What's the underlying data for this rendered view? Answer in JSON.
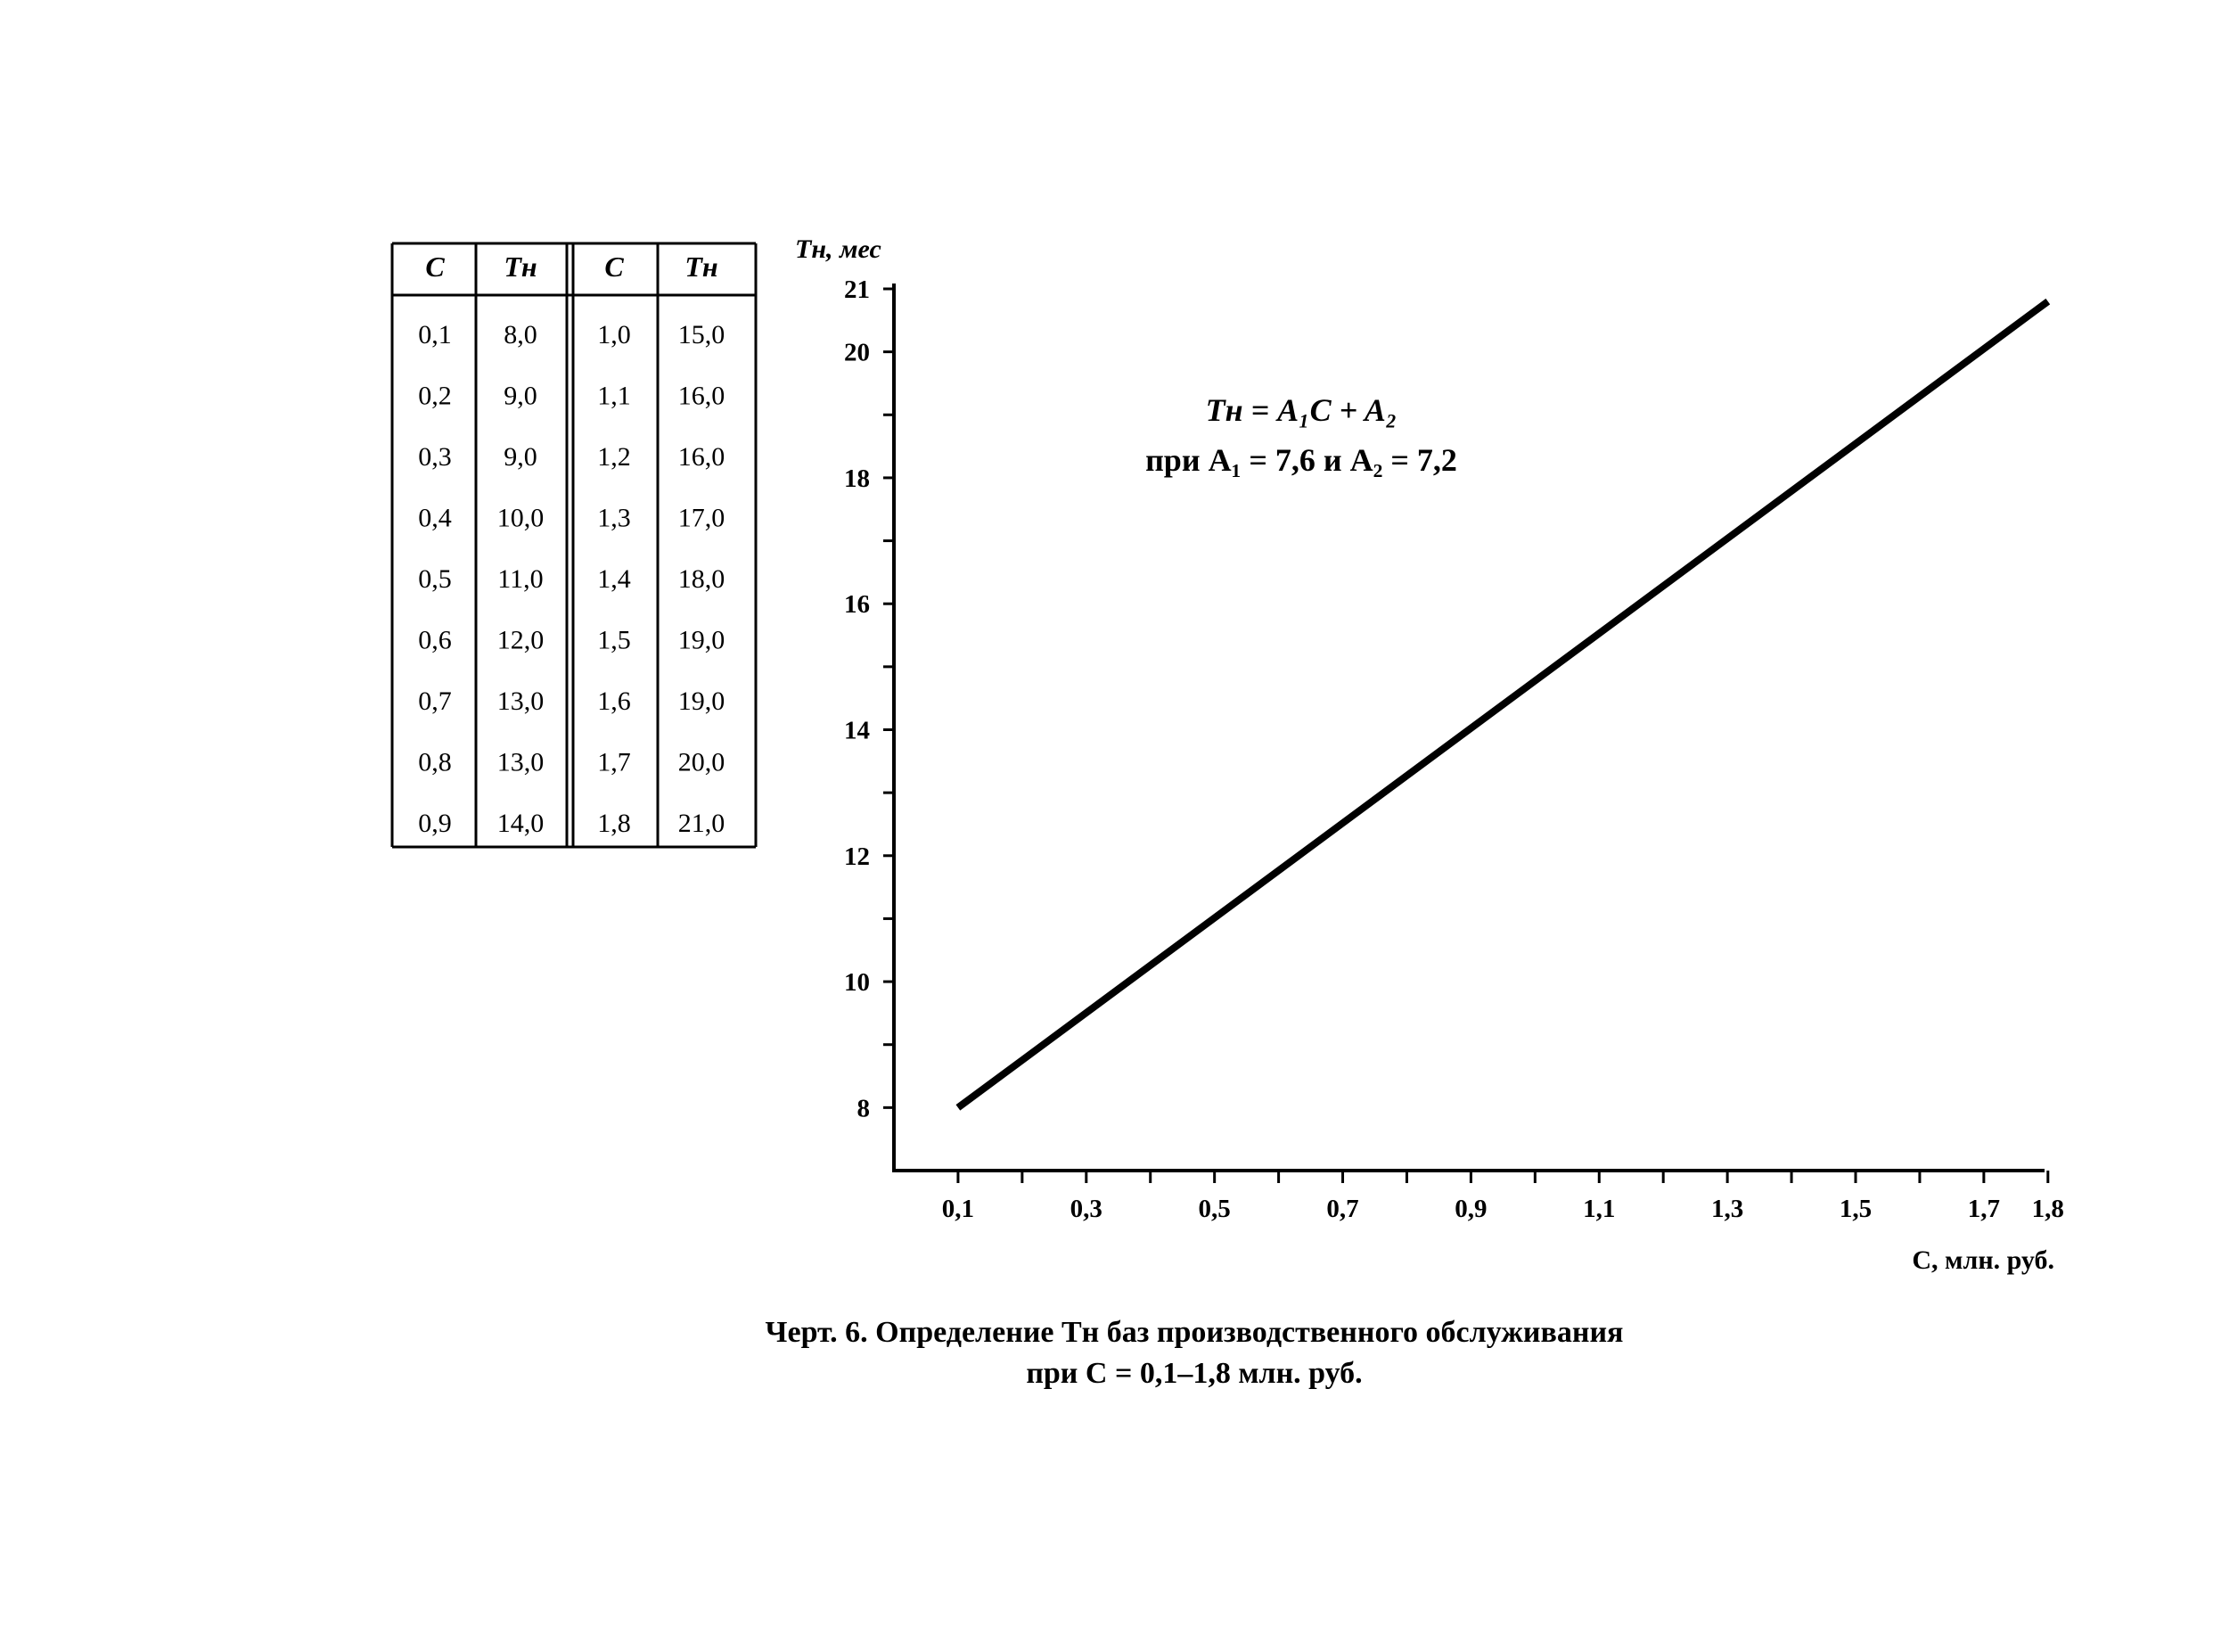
{
  "table": {
    "headers": [
      "C",
      "Тн",
      "C",
      "Тн"
    ],
    "rows": [
      [
        "0,1",
        "8,0",
        "1,0",
        "15,0"
      ],
      [
        "0,2",
        "9,0",
        "1,1",
        "16,0"
      ],
      [
        "0,3",
        "9,0",
        "1,2",
        "16,0"
      ],
      [
        "0,4",
        "10,0",
        "1,3",
        "17,0"
      ],
      [
        "0,5",
        "11,0",
        "1,4",
        "18,0"
      ],
      [
        "0,6",
        "12,0",
        "1,5",
        "19,0"
      ],
      [
        "0,7",
        "13,0",
        "1,6",
        "19,0"
      ],
      [
        "0,8",
        "13,0",
        "1,7",
        "20,0"
      ],
      [
        "0,9",
        "14,0",
        "1,8",
        "21,0"
      ]
    ]
  },
  "chart_data": {
    "type": "line",
    "title": "",
    "xlabel": "C, млн. руб.",
    "ylabel": "Тн, мес",
    "xlim": [
      0,
      1.8
    ],
    "ylim": [
      7,
      21
    ],
    "x_tick_labels": [
      {
        "value": 0.1,
        "label": "0,1"
      },
      {
        "value": 0.3,
        "label": "0,3"
      },
      {
        "value": 0.5,
        "label": "0,5"
      },
      {
        "value": 0.7,
        "label": "0,7"
      },
      {
        "value": 0.9,
        "label": "0,9"
      },
      {
        "value": 1.1,
        "label": "1,1"
      },
      {
        "value": 1.3,
        "label": "1,3"
      },
      {
        "value": 1.5,
        "label": "1,5"
      },
      {
        "value": 1.7,
        "label": "1,7"
      },
      {
        "value": 1.8,
        "label": "1,8"
      }
    ],
    "x_minor_ticks": [
      0.2,
      0.4,
      0.6,
      0.8,
      1.0,
      1.2,
      1.4,
      1.6
    ],
    "y_tick_labels": [
      {
        "value": 8,
        "label": "8"
      },
      {
        "value": 10,
        "label": "10"
      },
      {
        "value": 12,
        "label": "12"
      },
      {
        "value": 14,
        "label": "14"
      },
      {
        "value": 16,
        "label": "16"
      },
      {
        "value": 18,
        "label": "18"
      },
      {
        "value": 20,
        "label": "20"
      },
      {
        "value": 21,
        "label": "21"
      }
    ],
    "y_minor_ticks": [
      9,
      11,
      13,
      15,
      17,
      19
    ],
    "grid": false,
    "series": [
      {
        "x": [
          0.1,
          1.8
        ],
        "y": [
          8.0,
          20.8
        ]
      }
    ],
    "annotations": {
      "formula_line1": "Тн = A₁C + A₂",
      "formula_line2": "при A₁ = 7,6 и A₂ = 7,2"
    }
  },
  "caption": {
    "line1": "Черт. 6. Определение Тн баз производственного обслуживания",
    "line2": "при C = 0,1–1,8 млн. руб."
  }
}
